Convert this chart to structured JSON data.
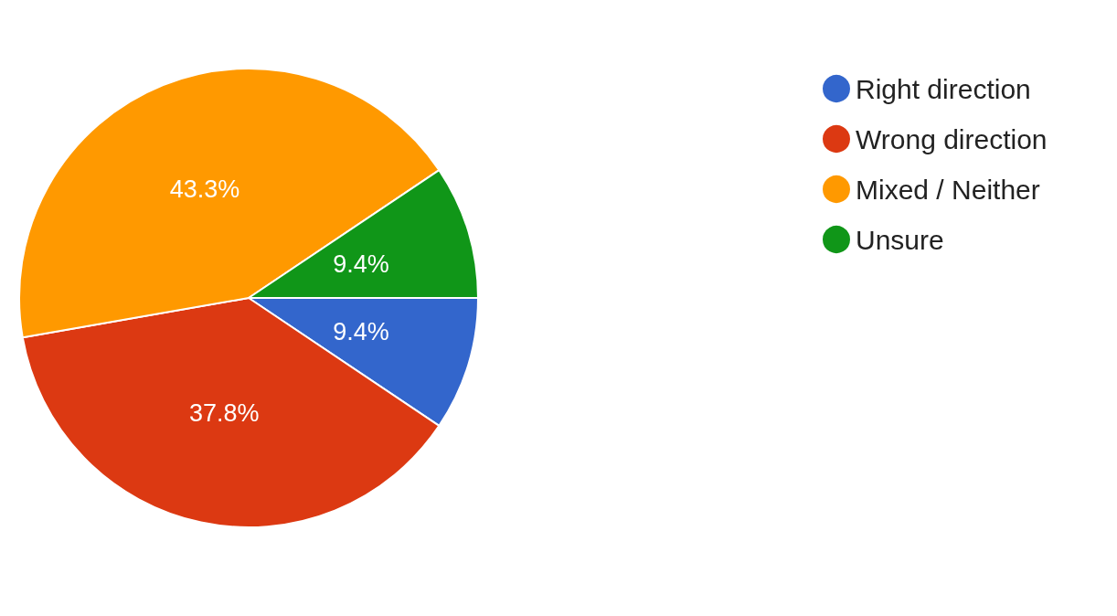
{
  "chart_data": {
    "type": "pie",
    "categories": [
      "Right direction",
      "Wrong direction",
      "Mixed / Neither",
      "Unsure"
    ],
    "values": [
      9.4,
      37.8,
      43.3,
      9.4
    ],
    "colors": [
      "#3366cc",
      "#dc3912",
      "#ff9900",
      "#109618"
    ],
    "value_labels": [
      "9.4%",
      "37.8%",
      "43.3%",
      "9.4%"
    ],
    "legend": "top right"
  }
}
